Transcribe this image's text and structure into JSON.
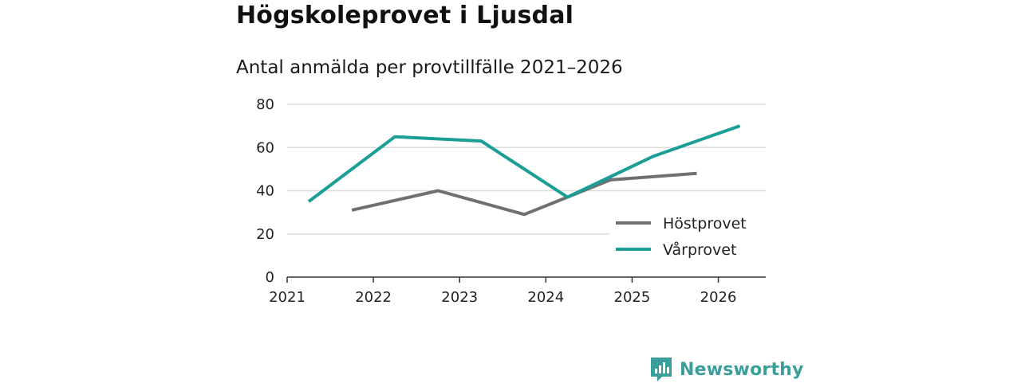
{
  "title": "Högskoleprovet i Ljusdal",
  "subtitle": "Antal anmälda per provtillfälle 2021–2026",
  "brand": {
    "name": "Newsworthy",
    "color": "#3a9e9b",
    "icon": "newsworthy-logo-icon"
  },
  "chart_data": {
    "type": "line",
    "title": "Antal anmälda per provtillfälle 2021–2026",
    "xlabel": "",
    "ylabel": "",
    "xlim": [
      2021,
      2026.55
    ],
    "ylim": [
      0,
      80
    ],
    "yticks": [
      0,
      20,
      40,
      60,
      80
    ],
    "xticks": [
      2021,
      2022,
      2023,
      2024,
      2025,
      2026
    ],
    "grid": true,
    "legend_position": "bottom-right",
    "series": [
      {
        "name": "Höstprovet",
        "color": "#707070",
        "x": [
          2021.75,
          2022.75,
          2023.75,
          2024.75,
          2025.75
        ],
        "values": [
          31,
          40,
          29,
          45,
          48
        ]
      },
      {
        "name": "Vårprovet",
        "color": "#1a9e96",
        "x": [
          2021.25,
          2022.25,
          2023.25,
          2024.25,
          2025.25,
          2026.25
        ],
        "values": [
          35,
          65,
          63,
          37,
          56,
          70
        ]
      }
    ]
  }
}
